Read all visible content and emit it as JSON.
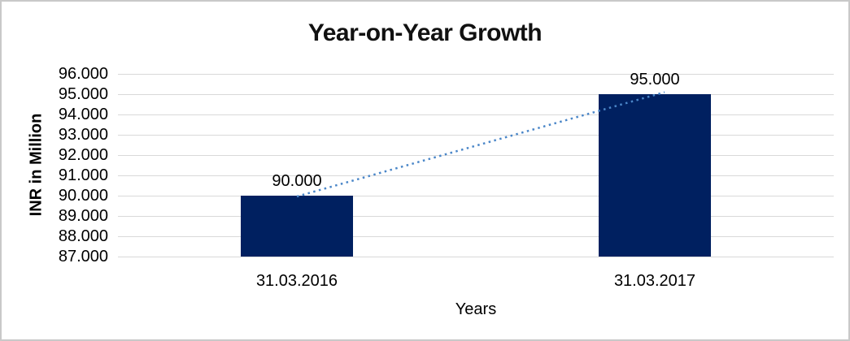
{
  "chart": {
    "colors": {
      "bar": "#002060",
      "trendline": "#4a86c8",
      "gridline": "#d9d9d9",
      "border": "#c9c9c9",
      "text": "#000000"
    }
  },
  "chart_data": {
    "type": "bar",
    "title": "Year-on-Year Growth",
    "xlabel": "Years",
    "ylabel": "INR in Million",
    "categories": [
      "31.03.2016",
      "31.03.2017"
    ],
    "values": [
      90000,
      95000
    ],
    "data_labels": [
      "90.000",
      "95.000"
    ],
    "y_ticks": [
      "96.000",
      "95.000",
      "94.000",
      "93.000",
      "92.000",
      "91.000",
      "90.000",
      "89.000",
      "88.000",
      "87.000"
    ],
    "ylim": [
      87000,
      96000
    ],
    "tick_step": 1000,
    "grid": true,
    "legend": false,
    "trendline": {
      "style": "dotted",
      "from_value": 90000,
      "to_value": 95000
    }
  }
}
